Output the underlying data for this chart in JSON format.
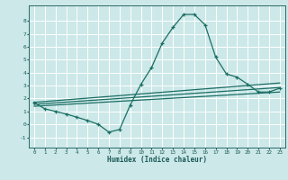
{
  "xlabel": "Humidex (Indice chaleur)",
  "bg_color": "#cce8e8",
  "grid_color": "#ffffff",
  "line_color": "#1a6e64",
  "xlim": [
    -0.5,
    23.5
  ],
  "ylim": [
    -1.8,
    9.2
  ],
  "yticks": [
    -1,
    0,
    1,
    2,
    3,
    4,
    5,
    6,
    7,
    8
  ],
  "xticks": [
    0,
    1,
    2,
    3,
    4,
    5,
    6,
    7,
    8,
    9,
    10,
    11,
    12,
    13,
    14,
    15,
    16,
    17,
    18,
    19,
    20,
    21,
    22,
    23
  ],
  "main_line_x": [
    0,
    1,
    2,
    3,
    4,
    5,
    6,
    7,
    8,
    9,
    10,
    11,
    12,
    13,
    14,
    15,
    16,
    17,
    18,
    19,
    20,
    21,
    22,
    23
  ],
  "main_line_y": [
    1.7,
    1.2,
    1.0,
    0.8,
    0.55,
    0.3,
    0.0,
    -0.6,
    -0.4,
    1.5,
    3.1,
    4.4,
    6.3,
    7.5,
    8.5,
    8.5,
    7.7,
    5.2,
    3.9,
    3.65,
    3.1,
    2.5,
    2.5,
    2.8
  ],
  "line2_x": [
    0,
    23
  ],
  "line2_y": [
    1.7,
    3.2
  ],
  "line3_x": [
    0,
    23
  ],
  "line3_y": [
    1.55,
    2.85
  ],
  "line4_x": [
    0,
    23
  ],
  "line4_y": [
    1.4,
    2.5
  ]
}
